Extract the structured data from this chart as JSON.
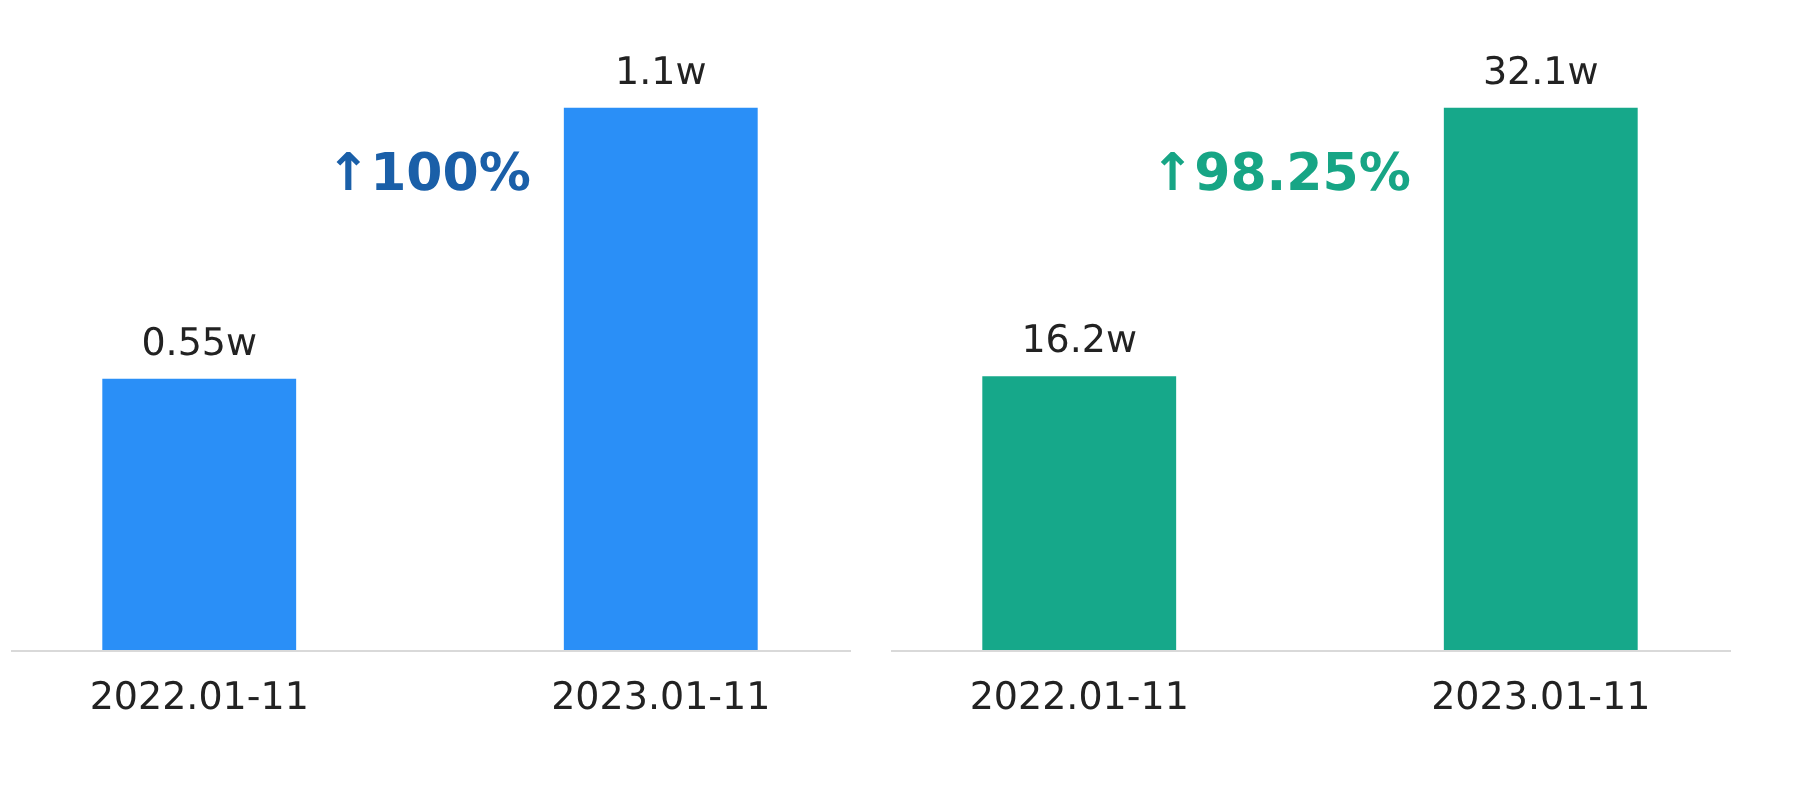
{
  "chart_data": [
    {
      "type": "bar",
      "categories": [
        "2022.01-11",
        "2023.01-11"
      ],
      "series": [
        {
          "color": "#2a8ff7",
          "values": [
            0.55,
            1.1
          ],
          "value_labels": [
            "0.55w",
            "1.1w"
          ]
        }
      ],
      "annotations": [
        "↑100%"
      ]
    },
    {
      "type": "bar",
      "categories": [
        "2022.01-11",
        "2023.01-11"
      ],
      "series": [
        {
          "color": "#16a88a",
          "values": [
            16.2,
            32.1
          ],
          "value_labels": [
            "16.2w",
            "32.1w"
          ]
        }
      ],
      "annotations": [
        "↑98.25%"
      ]
    }
  ]
}
